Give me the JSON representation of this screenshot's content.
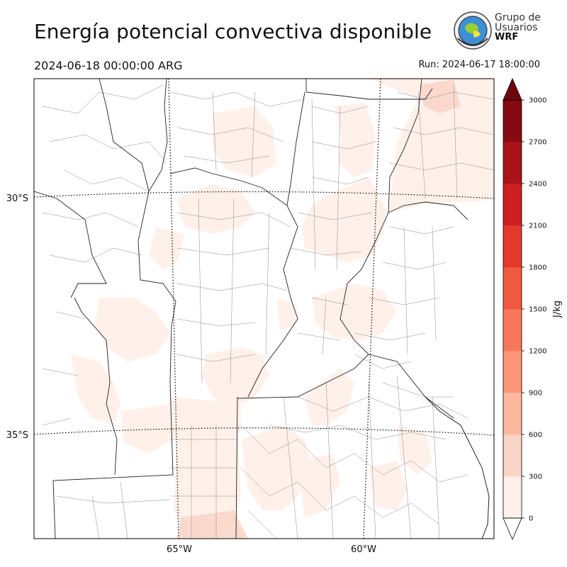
{
  "header": {
    "title": "Energía potencial convectiva disponible",
    "valid_time": "2024-06-18 00:00:00 ARG",
    "run_time": "Run: 2024-06-17 18:00:00"
  },
  "logo": {
    "line1": "Grupo de",
    "line2": "Usuarios",
    "line3": "WRF"
  },
  "map": {
    "lat_labels": [
      "30°S",
      "35°S"
    ],
    "lon_labels": [
      "65°W",
      "60°W"
    ]
  },
  "colorbar": {
    "unit": "J/kg",
    "levels": [
      0,
      300,
      600,
      900,
      1200,
      1500,
      1800,
      2100,
      2400,
      2700,
      3000
    ],
    "colors": [
      "#fff0ea",
      "#f9d5c7",
      "#fcb89f",
      "#fc9677",
      "#f9785c",
      "#f05a41",
      "#e33a2e",
      "#cc1f22",
      "#a81419",
      "#850a12"
    ],
    "extend_max_color": "#6e0610",
    "extend_min_color": "#ffffff"
  }
}
